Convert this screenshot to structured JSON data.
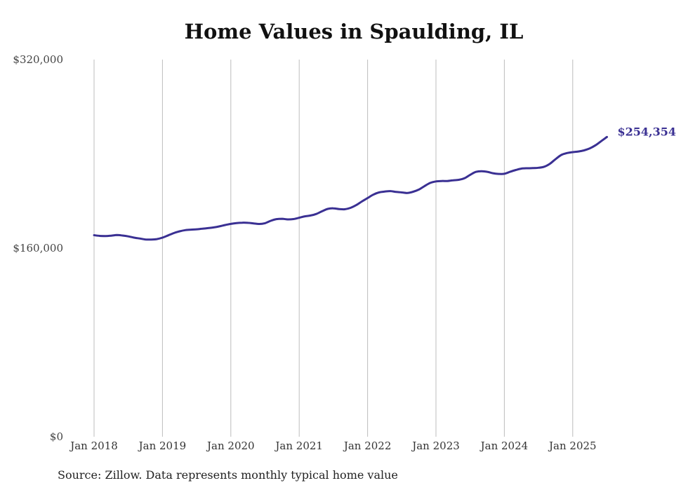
{
  "chart_data": {
    "type": "line",
    "title": "Home Values in Spaulding, IL",
    "source": "Source: Zillow. Data represents monthly typical home value",
    "y_ticks": [
      "$320,000",
      "$160,000",
      "$0"
    ],
    "x_ticks": [
      "Jan 2018",
      "Jan 2019",
      "Jan 2020",
      "Jan 2021",
      "Jan 2022",
      "Jan 2023",
      "Jan 2024",
      "Jan 2025"
    ],
    "ylim": [
      0,
      320000
    ],
    "xlim": [
      "2017-08",
      "2025-12"
    ],
    "grid": "vertical",
    "line_color": "#3a3093",
    "end_label": "$254,354",
    "series": [
      {
        "values": [
          [
            "2018-01",
            171000
          ],
          [
            "2018-02",
            170400
          ],
          [
            "2018-03",
            170300
          ],
          [
            "2018-04",
            170600
          ],
          [
            "2018-05",
            171100
          ],
          [
            "2018-06",
            170700
          ],
          [
            "2018-07",
            170000
          ],
          [
            "2018-08",
            168900
          ],
          [
            "2018-09",
            168200
          ],
          [
            "2018-10",
            167400
          ],
          [
            "2018-11",
            167300
          ],
          [
            "2018-12",
            167700
          ],
          [
            "2019-01",
            168900
          ],
          [
            "2019-02",
            170800
          ],
          [
            "2019-03",
            172800
          ],
          [
            "2019-04",
            174300
          ],
          [
            "2019-05",
            175300
          ],
          [
            "2019-06",
            175700
          ],
          [
            "2019-07",
            176000
          ],
          [
            "2019-08",
            176500
          ],
          [
            "2019-09",
            177000
          ],
          [
            "2019-10",
            177600
          ],
          [
            "2019-11",
            178500
          ],
          [
            "2019-12",
            179600
          ],
          [
            "2020-01",
            180600
          ],
          [
            "2020-02",
            181300
          ],
          [
            "2020-03",
            181600
          ],
          [
            "2020-04",
            181500
          ],
          [
            "2020-05",
            181000
          ],
          [
            "2020-06",
            180500
          ],
          [
            "2020-07",
            181200
          ],
          [
            "2020-08",
            183200
          ],
          [
            "2020-09",
            184600
          ],
          [
            "2020-10",
            184900
          ],
          [
            "2020-11",
            184400
          ],
          [
            "2020-12",
            184700
          ],
          [
            "2021-01",
            185800
          ],
          [
            "2021-02",
            187000
          ],
          [
            "2021-03",
            187700
          ],
          [
            "2021-04",
            189000
          ],
          [
            "2021-05",
            191300
          ],
          [
            "2021-06",
            193300
          ],
          [
            "2021-07",
            193800
          ],
          [
            "2021-08",
            193200
          ],
          [
            "2021-09",
            193000
          ],
          [
            "2021-10",
            194200
          ],
          [
            "2021-11",
            196500
          ],
          [
            "2021-12",
            199600
          ],
          [
            "2022-01",
            202500
          ],
          [
            "2022-02",
            205400
          ],
          [
            "2022-03",
            207300
          ],
          [
            "2022-04",
            208000
          ],
          [
            "2022-05",
            208400
          ],
          [
            "2022-06",
            207700
          ],
          [
            "2022-07",
            207300
          ],
          [
            "2022-08",
            206800
          ],
          [
            "2022-09",
            207900
          ],
          [
            "2022-10",
            209700
          ],
          [
            "2022-11",
            212700
          ],
          [
            "2022-12",
            215400
          ],
          [
            "2023-01",
            216600
          ],
          [
            "2023-02",
            217000
          ],
          [
            "2023-03",
            217000
          ],
          [
            "2023-04",
            217600
          ],
          [
            "2023-05",
            218000
          ],
          [
            "2023-06",
            219300
          ],
          [
            "2023-07",
            222200
          ],
          [
            "2023-08",
            224700
          ],
          [
            "2023-09",
            225300
          ],
          [
            "2023-10",
            224800
          ],
          [
            "2023-11",
            223600
          ],
          [
            "2023-12",
            223000
          ],
          [
            "2024-01",
            223100
          ],
          [
            "2024-02",
            224800
          ],
          [
            "2024-03",
            226300
          ],
          [
            "2024-04",
            227500
          ],
          [
            "2024-05",
            227800
          ],
          [
            "2024-06",
            227900
          ],
          [
            "2024-07",
            228200
          ],
          [
            "2024-08",
            229100
          ],
          [
            "2024-09",
            231600
          ],
          [
            "2024-10",
            235600
          ],
          [
            "2024-11",
            239100
          ],
          [
            "2024-12",
            240700
          ],
          [
            "2025-01",
            241500
          ],
          [
            "2025-02",
            242000
          ],
          [
            "2025-03",
            243000
          ],
          [
            "2025-04",
            244700
          ],
          [
            "2025-05",
            247300
          ],
          [
            "2025-06",
            250800
          ],
          [
            "2025-07",
            254354
          ]
        ]
      }
    ]
  }
}
